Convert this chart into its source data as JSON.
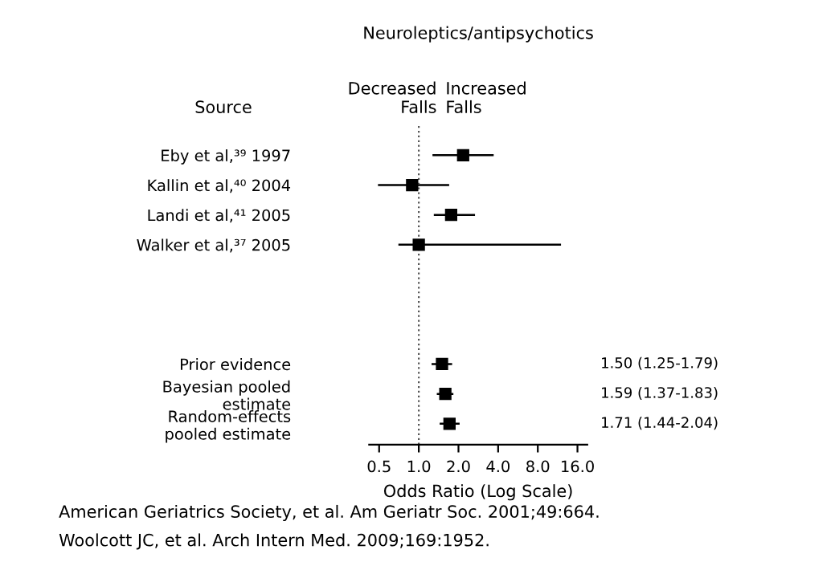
{
  "chart_data": {
    "type": "scatter",
    "orientation": "horizontal",
    "title": "Neuroleptics/antipsychotics",
    "xlabel": "Odds Ratio (Log Scale)",
    "categories": [
      "Eby et al,³⁹ 1997",
      "Kallin et al,⁴⁰ 2004",
      "Landi et al,⁴¹ 2005",
      "Walker et al,³⁷ 2005",
      null,
      null,
      null,
      "Prior evidence",
      "Bayesian pooled\nestimate",
      "Random-effects\npooled estimate"
    ],
    "series": [
      {
        "color": "#000000",
        "values": [
          2.17,
          0.89,
          1.76,
          1.0,
          null,
          null,
          null,
          1.5,
          1.59,
          1.71
        ],
        "errors": [
          [
            1.27,
            3.7
          ],
          [
            0.49,
            1.7
          ],
          [
            1.3,
            2.67
          ],
          [
            0.7,
            12
          ],
          null,
          null,
          null,
          [
            1.25,
            1.79
          ],
          [
            1.37,
            1.83
          ],
          [
            1.44,
            2.04
          ]
        ],
        "value_labels": [
          null,
          null,
          null,
          null,
          null,
          null,
          null,
          "1.50 (1.25-1.79)",
          "1.59 (1.37-1.83)",
          "1.71 (1.44-2.04)"
        ]
      }
    ],
    "log": "x",
    "xlim": [
      0.42,
      19
    ],
    "xticks": [
      0.5,
      {
        "value": 1,
        "label": "1.0"
      },
      {
        "value": 2,
        "label": "2.0"
      },
      {
        "value": 4,
        "label": "4.0"
      },
      {
        "value": 8,
        "label": "8.0"
      },
      {
        "value": 16,
        "label": "16.0"
      }
    ],
    "marker": "square",
    "grid": false,
    "legend": false,
    "ref_lines": [
      {
        "axis": "x",
        "value": 1,
        "line_style": "dotted",
        "color": "#555555"
      }
    ],
    "annotations": [
      "Source",
      "Decreased\nFalls",
      "Increased\nFalls",
      "American Geriatrics Society, et al. Am Geriatr Soc. 2001;49:664.",
      "Woolcott JC, et al. Arch Intern Med. 2009;169:1952."
    ]
  }
}
